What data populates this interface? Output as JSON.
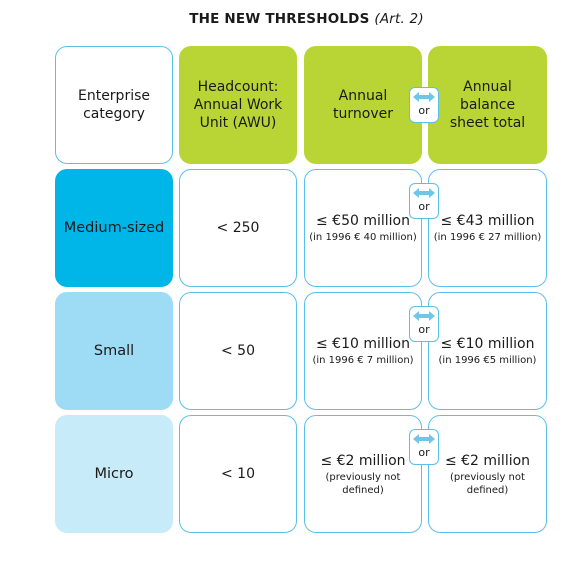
{
  "title": {
    "main": "THE NEW THRESHOLDS",
    "article": "(Art. 2)"
  },
  "colors": {
    "header_green": "#b9d535",
    "border_blue": "#5bc0e8",
    "arrow_blue": "#6fc6ea",
    "medium": "#00b5e8",
    "small": "#9edcf5",
    "micro": "#c7ebf9"
  },
  "or_icon": "double-arrow-icon",
  "header": {
    "category": "Enterprise category",
    "headcount": "Headcount: Annual Work Unit (AWU)",
    "turnover": "Annual turnover",
    "or": "or",
    "balance": "Annual balance sheet total"
  },
  "rows": [
    {
      "category": "Medium-sized",
      "headcount": "< 250",
      "or": "or",
      "turnover": "≤ €50 million",
      "turnover_note": "(in 1996 € 40 million)",
      "balance": "≤ €43 million",
      "balance_note": "(in 1996 € 27 million)"
    },
    {
      "category": "Small",
      "headcount": "< 50",
      "or": "or",
      "turnover": "≤ €10 million",
      "turnover_note": "(in 1996 € 7 million)",
      "balance": "≤ €10 million",
      "balance_note": "(in 1996 €5 million)"
    },
    {
      "category": "Micro",
      "headcount": "< 10",
      "or": "or",
      "turnover": "≤ €2 million",
      "turnover_note": "(previously not defined)",
      "balance": "≤ €2 million",
      "balance_note": "(previously not defined)"
    }
  ]
}
